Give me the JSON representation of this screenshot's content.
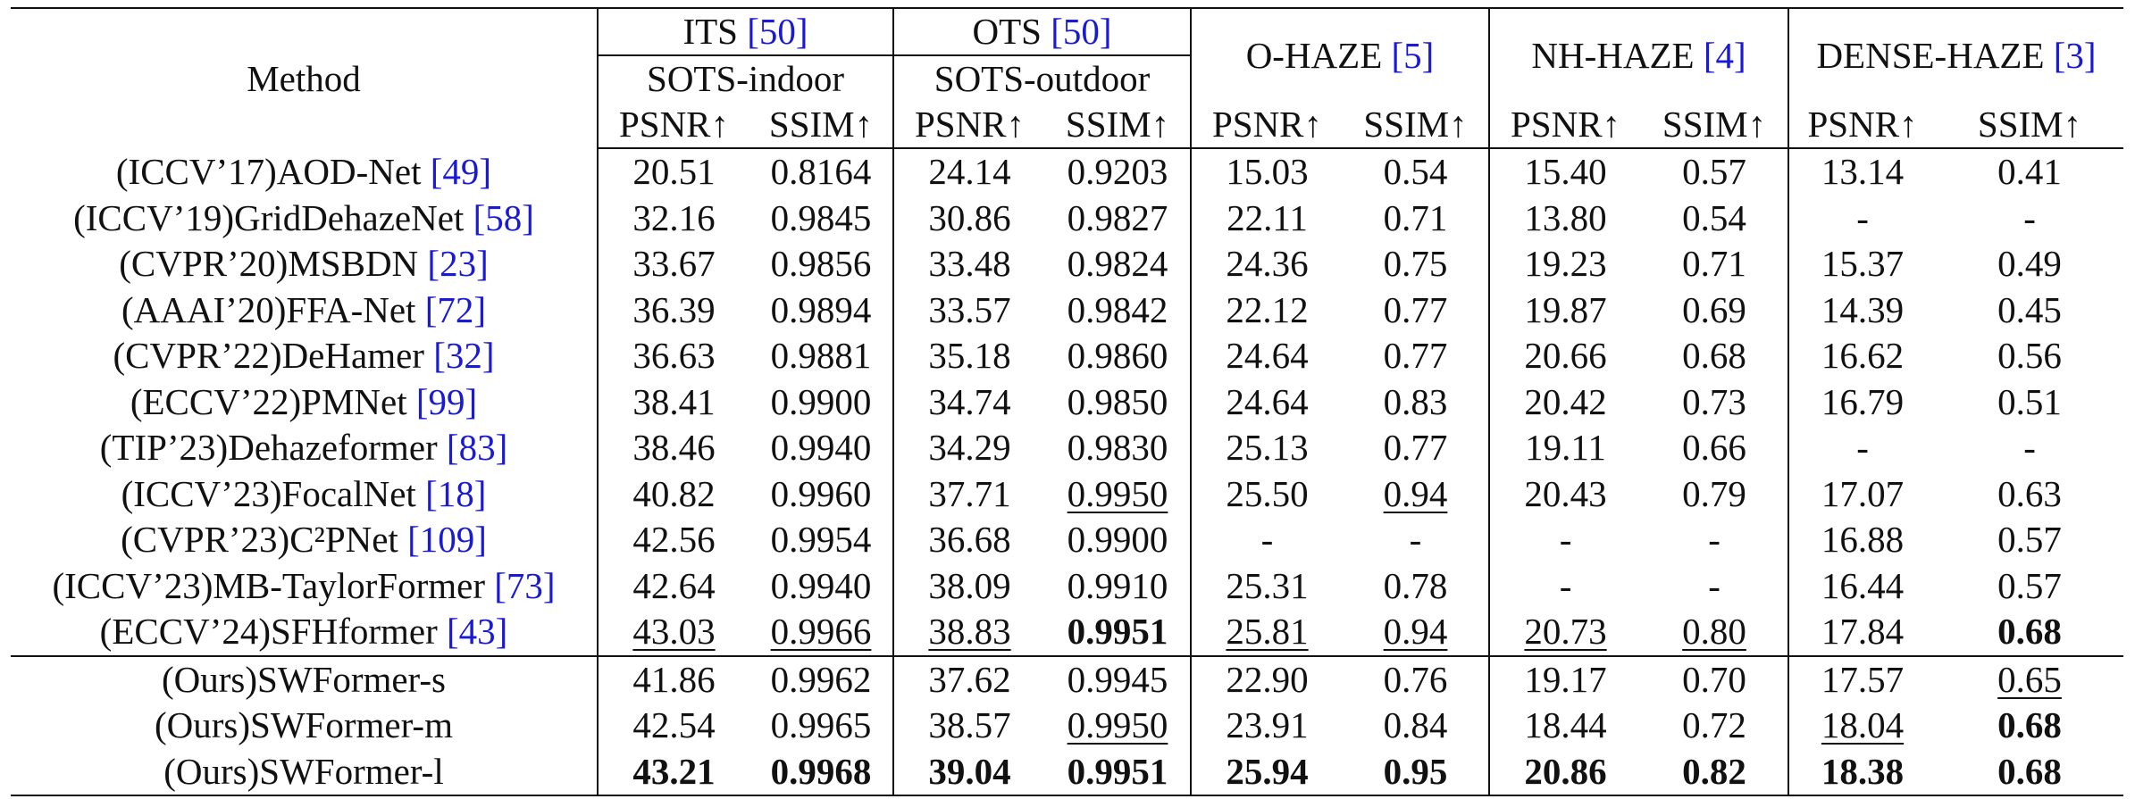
{
  "header": {
    "method_label": "Method",
    "datasets": [
      {
        "name": "ITS",
        "ref": "[50]",
        "subset": "SOTS-indoor"
      },
      {
        "name": "OTS",
        "ref": "[50]",
        "subset": "SOTS-outdoor"
      },
      {
        "name": "O-HAZE",
        "ref": "[5]"
      },
      {
        "name": "NH-HAZE",
        "ref": "[4]"
      },
      {
        "name": "DENSE-HAZE",
        "ref": "[3]"
      }
    ],
    "metrics": [
      "PSNR↑",
      "SSIM↑",
      "PSNR↑",
      "SSIM↑",
      "PSNR↑",
      "SSIM↑",
      "PSNR↑",
      "SSIM↑",
      "PSNR↑",
      "SSIM↑"
    ]
  },
  "rows": [
    {
      "prefix": "(ICCV’17)",
      "name": "AOD-Net",
      "ref": "[49]",
      "values": [
        "20.51",
        "0.8164",
        "24.14",
        "0.9203",
        "15.03",
        "0.54",
        "15.40",
        "0.57",
        "13.14",
        "0.41"
      ],
      "styles": [
        "",
        "",
        "",
        "",
        "",
        "",
        "",
        "",
        "",
        ""
      ]
    },
    {
      "prefix": "(ICCV’19)",
      "name": "GridDehazeNet",
      "ref": "[58]",
      "values": [
        "32.16",
        "0.9845",
        "30.86",
        "0.9827",
        "22.11",
        "0.71",
        "13.80",
        "0.54",
        "-",
        "-"
      ],
      "styles": [
        "",
        "",
        "",
        "",
        "",
        "",
        "",
        "",
        "",
        ""
      ]
    },
    {
      "prefix": "(CVPR’20)",
      "name": "MSBDN",
      "ref": "[23]",
      "values": [
        "33.67",
        "0.9856",
        "33.48",
        "0.9824",
        "24.36",
        "0.75",
        "19.23",
        "0.71",
        "15.37",
        "0.49"
      ],
      "styles": [
        "",
        "",
        "",
        "",
        "",
        "",
        "",
        "",
        "",
        ""
      ]
    },
    {
      "prefix": "(AAAI’20)",
      "name": "FFA-Net",
      "ref": "[72]",
      "values": [
        "36.39",
        "0.9894",
        "33.57",
        "0.9842",
        "22.12",
        "0.77",
        "19.87",
        "0.69",
        "14.39",
        "0.45"
      ],
      "styles": [
        "",
        "",
        "",
        "",
        "",
        "",
        "",
        "",
        "",
        ""
      ]
    },
    {
      "prefix": "(CVPR’22)",
      "name": "DeHamer",
      "ref": "[32]",
      "values": [
        "36.63",
        "0.9881",
        "35.18",
        "0.9860",
        "24.64",
        "0.77",
        "20.66",
        "0.68",
        "16.62",
        "0.56"
      ],
      "styles": [
        "",
        "",
        "",
        "",
        "",
        "",
        "",
        "",
        "",
        ""
      ]
    },
    {
      "prefix": "(ECCV’22)",
      "name": "PMNet",
      "ref": "[99]",
      "values": [
        "38.41",
        "0.9900",
        "34.74",
        "0.9850",
        "24.64",
        "0.83",
        "20.42",
        "0.73",
        "16.79",
        "0.51"
      ],
      "styles": [
        "",
        "",
        "",
        "",
        "",
        "",
        "",
        "",
        "",
        ""
      ]
    },
    {
      "prefix": "(TIP’23)",
      "name": "Dehazeformer",
      "ref": "[83]",
      "values": [
        "38.46",
        "0.9940",
        "34.29",
        "0.9830",
        "25.13",
        "0.77",
        "19.11",
        "0.66",
        "-",
        "-"
      ],
      "styles": [
        "",
        "",
        "",
        "",
        "",
        "",
        "",
        "",
        "",
        ""
      ]
    },
    {
      "prefix": "(ICCV’23)",
      "name": "FocalNet",
      "ref": "[18]",
      "values": [
        "40.82",
        "0.9960",
        "37.71",
        "0.9950",
        "25.50",
        "0.94",
        "20.43",
        "0.79",
        "17.07",
        "0.63"
      ],
      "styles": [
        "",
        "",
        "",
        "u",
        "",
        "u",
        "",
        "",
        "",
        ""
      ]
    },
    {
      "prefix": "(CVPR’23)",
      "name": "C²PNet",
      "ref": "[109]",
      "values": [
        "42.56",
        "0.9954",
        "36.68",
        "0.9900",
        "-",
        "-",
        "-",
        "-",
        "16.88",
        "0.57"
      ],
      "styles": [
        "",
        "",
        "",
        "",
        "",
        "",
        "",
        "",
        "",
        ""
      ]
    },
    {
      "prefix": "(ICCV’23)",
      "name": "MB-TaylorFormer",
      "ref": "[73]",
      "values": [
        "42.64",
        "0.9940",
        "38.09",
        "0.9910",
        "25.31",
        "0.78",
        "-",
        "-",
        "16.44",
        "0.57"
      ],
      "styles": [
        "",
        "",
        "",
        "",
        "",
        "",
        "",
        "",
        "",
        ""
      ]
    },
    {
      "prefix": "(ECCV’24)",
      "name": "SFHformer",
      "ref": "[43]",
      "values": [
        "43.03",
        "0.9966",
        "38.83",
        "0.9951",
        "25.81",
        "0.94",
        "20.73",
        "0.80",
        "17.84",
        "0.68"
      ],
      "styles": [
        "u",
        "u",
        "u",
        "b",
        "u",
        "u",
        "u",
        "u",
        "",
        "b"
      ]
    },
    {
      "prefix": "(Ours)",
      "name": "SWFormer-s",
      "ref": "",
      "values": [
        "41.86",
        "0.9962",
        "37.62",
        "0.9945",
        "22.90",
        "0.76",
        "19.17",
        "0.70",
        "17.57",
        "0.65"
      ],
      "styles": [
        "",
        "",
        "",
        "",
        "",
        "",
        "",
        "",
        "",
        "u"
      ]
    },
    {
      "prefix": "(Ours)",
      "name": "SWFormer-m",
      "ref": "",
      "values": [
        "42.54",
        "0.9965",
        "38.57",
        "0.9950",
        "23.91",
        "0.84",
        "18.44",
        "0.72",
        "18.04",
        "0.68"
      ],
      "styles": [
        "",
        "",
        "",
        "u",
        "",
        "",
        "",
        "",
        "u",
        "b"
      ]
    },
    {
      "prefix": "(Ours)",
      "name": "SWFormer-l",
      "ref": "",
      "values": [
        "43.21",
        "0.9968",
        "39.04",
        "0.9951",
        "25.94",
        "0.95",
        "20.86",
        "0.82",
        "18.38",
        "0.68"
      ],
      "styles": [
        "b",
        "b",
        "b",
        "b",
        "b",
        "b",
        "b",
        "b",
        "b",
        "b"
      ]
    }
  ]
}
